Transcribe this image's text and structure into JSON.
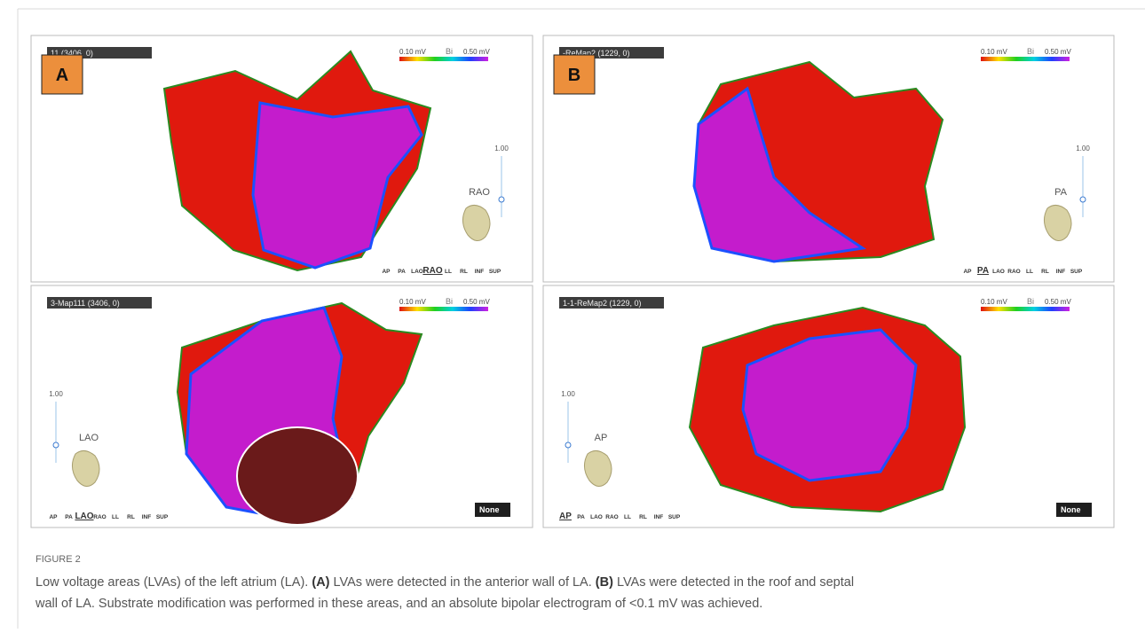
{
  "figure": {
    "view_buttons": [
      "AP",
      "PA",
      "LAO",
      "RAO",
      "LL",
      "RL",
      "INF",
      "SUP"
    ],
    "panels": [
      {
        "letter": "A",
        "map_name": "11 (3406, 0)",
        "scale_min": "0.10 mV",
        "scale_mode": "Bi",
        "scale_max": "0.50 mV",
        "orientation": "RAO",
        "slider_label": "1.00",
        "selected_view": "RAO"
      },
      {
        "letter": "B",
        "map_name": "-ReMap2 (1229, 0)",
        "scale_min": "0.10 mV",
        "scale_mode": "Bi",
        "scale_max": "0.50 mV",
        "orientation": "PA",
        "slider_label": "1.00",
        "selected_view": "PA"
      },
      {
        "map_name": "3-Map111 (3406, 0)",
        "scale_min": "0.10 mV",
        "scale_mode": "Bi",
        "scale_max": "0.50 mV",
        "orientation": "LAO",
        "slider_label": "1.00",
        "selected_view": "LAO",
        "dropdown": "None"
      },
      {
        "map_name": "1-1-ReMap2 (1229, 0)",
        "scale_min": "0.10 mV",
        "scale_mode": "Bi",
        "scale_max": "0.50 mV",
        "orientation": "AP",
        "slider_label": "1.00",
        "selected_view": "AP",
        "dropdown": "None"
      }
    ],
    "caption": {
      "label": "FIGURE 2",
      "line1": [
        "Low voltage areas (LVAs) of the left atrium (LA). ",
        "(A)",
        " LVAs were detected in the anterior wall of LA. ",
        "(B)",
        " LVAs were detected in the roof and septal"
      ],
      "line2": "wall of LA. Substrate modification was performed in these areas, and an absolute bipolar electrogram of <0.1 mV was achieved."
    }
  }
}
